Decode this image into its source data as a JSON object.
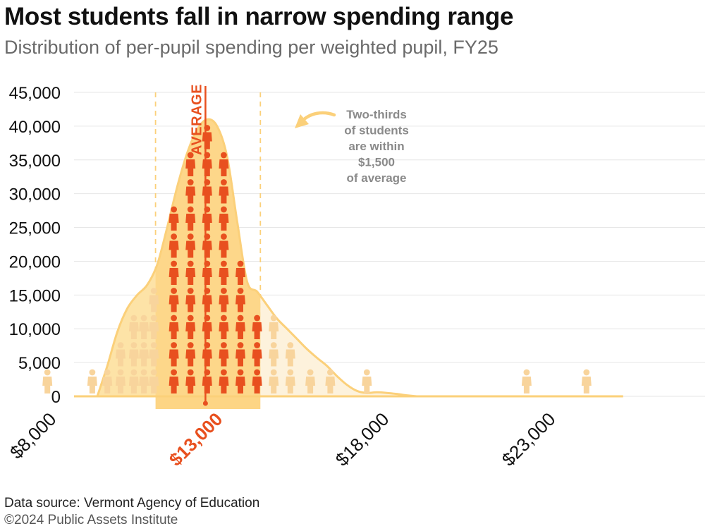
{
  "header": {
    "title": "Most students fall in narrow spending range",
    "subtitle": "Distribution of per-pupil spending per weighted pupil, FY25"
  },
  "footer": {
    "source": "Data source: Vermont Agency of Education",
    "copyright": "©2024 Public Assets Institute"
  },
  "colors": {
    "accent": "#e8501f",
    "band": "#fdd585",
    "curve_fill": "#fde3a7",
    "curve_line": "#fbd07a",
    "tail_fill": "#fdf2dc",
    "faded_icon": "#f8d49c",
    "annotation": "#8a8a8a",
    "grid": "#e6e6e6"
  },
  "chart_data": {
    "type": "area",
    "title": "Most students fall in narrow spending range",
    "subtitle": "Distribution of per-pupil spending per weighted pupil, FY25",
    "xlabel": "",
    "ylabel": "",
    "xlim": [
      7500,
      25500
    ],
    "ylim": [
      0,
      45000
    ],
    "grid": true,
    "y_ticks": [
      0,
      5000,
      10000,
      15000,
      20000,
      25000,
      30000,
      35000,
      40000,
      45000
    ],
    "y_tick_labels": [
      "0",
      "5,000",
      "10,000",
      "15,000",
      "20,000",
      "25,000",
      "30,000",
      "35,000",
      "40,000",
      "45,000"
    ],
    "x_ticks": [
      8000,
      13000,
      18000,
      23000
    ],
    "x_tick_labels": [
      "$8,000",
      "$13,000",
      "$18,000",
      "$23,000"
    ],
    "highlight_x_tick": "$13,000",
    "series": [
      {
        "x": [
          9500,
          9800,
          10100,
          10400,
          10700,
          11000,
          11300,
          11600,
          11900,
          12200,
          12500,
          12800,
          13100,
          13400,
          13700,
          14000,
          14300,
          14600,
          14900,
          15200,
          15500,
          15800,
          16100,
          16400,
          16700,
          17000,
          17300,
          17600,
          17900,
          18200,
          18500,
          18800,
          19100
        ],
        "values": [
          0,
          4500,
          9500,
          13000,
          15000,
          16500,
          19500,
          25000,
          31000,
          36000,
          39500,
          41000,
          40000,
          35500,
          26000,
          17000,
          15500,
          13500,
          11500,
          10000,
          8500,
          7000,
          5700,
          4500,
          3000,
          1700,
          800,
          500,
          600,
          500,
          350,
          150,
          0
        ]
      }
    ],
    "average_label": "AVERAGE",
    "average_x": 12750,
    "band_range": [
      11250,
      14400
    ],
    "annotation": [
      "Two-thirds",
      "of students",
      "are within",
      "$1,500",
      "of average"
    ],
    "icon_markers": [
      {
        "x": 8000,
        "group": "faded"
      },
      {
        "x": 9350,
        "group": "faded"
      },
      {
        "x": 9800,
        "group": "faded"
      },
      {
        "x": 10200,
        "group": "faded"
      },
      {
        "x": 10600,
        "group": "faded"
      },
      {
        "x": 10900,
        "group": "faded"
      },
      {
        "x": 11200,
        "group": "faded"
      },
      {
        "x": 11800,
        "group": "highlighted"
      },
      {
        "x": 12300,
        "group": "highlighted"
      },
      {
        "x": 12800,
        "group": "highlighted"
      },
      {
        "x": 13300,
        "group": "highlighted"
      },
      {
        "x": 13800,
        "group": "highlighted"
      },
      {
        "x": 14300,
        "group": "highlighted"
      },
      {
        "x": 14800,
        "group": "faded"
      },
      {
        "x": 15300,
        "group": "faded"
      },
      {
        "x": 15900,
        "group": "faded"
      },
      {
        "x": 16500,
        "group": "faded"
      },
      {
        "x": 17600,
        "group": "faded"
      },
      {
        "x": 22400,
        "group": "faded"
      },
      {
        "x": 24200,
        "group": "faded"
      }
    ]
  }
}
